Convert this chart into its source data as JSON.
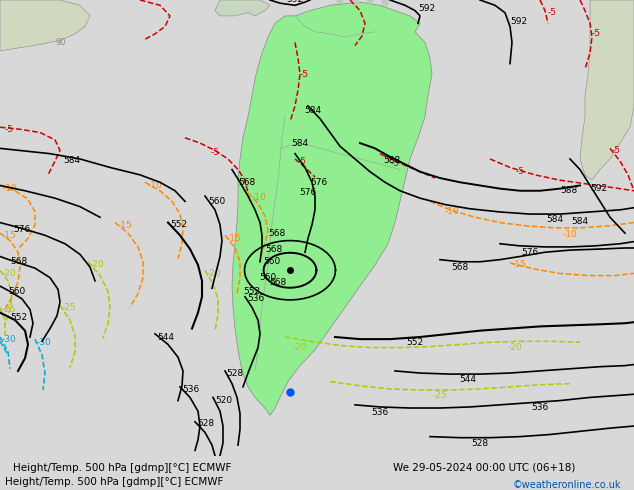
{
  "title_left": "Height/Temp. 500 hPa [gdmp][°C] ECMWF",
  "title_right": "We 29-05-2024 00:00 UTC (06+18)",
  "copyright": "©weatheronline.co.uk",
  "bg_color": "#d8d8d8",
  "land_color": "#c8e6c8",
  "land_color_green": "#90ee90",
  "ocean_color": "#e8e8e8",
  "bottom_bar_color": "#ffffff",
  "title_fontsize": 9,
  "copyright_color": "#0055aa",
  "contour_black_color": "#000000",
  "contour_red_color": "#cc0000",
  "contour_orange_color": "#ff8800",
  "contour_yellow_green_color": "#aacc00",
  "contour_cyan_color": "#00aacc",
  "contour_blue_color": "#0055ff"
}
